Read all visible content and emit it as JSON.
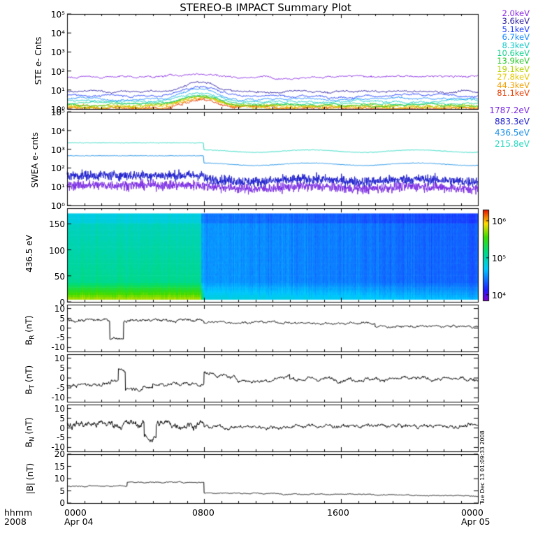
{
  "title": "STEREO-B IMPACT Summary Plot",
  "timestamp_stamp": "Tue Dec 13 01:09:33 2008",
  "x_axis": {
    "left_label_top": "hhmm",
    "left_label_bottom": "2008",
    "ticks": [
      {
        "label": "0000",
        "sub": "Apr 04",
        "hour": 0
      },
      {
        "label": "0800",
        "sub": "",
        "hour": 8
      },
      {
        "label": "1600",
        "sub": "",
        "hour": 16
      },
      {
        "label": "0000",
        "sub": "Apr 05",
        "hour": 24
      }
    ],
    "range_hours": [
      0,
      24
    ]
  },
  "chart_data": [
    {
      "type": "line",
      "panel": "ste",
      "ylabel": "STE e- Cnts",
      "yscale": "log",
      "ylim": [
        1,
        100000
      ],
      "ytick_labels": [
        "10⁰",
        "10¹",
        "10²",
        "10³",
        "10⁴",
        "10⁵"
      ],
      "series": [
        {
          "name": "2.0keV",
          "color": "#8a2be2",
          "level": 50
        },
        {
          "name": "3.6keV",
          "color": "#2a1ba0",
          "level": 8
        },
        {
          "name": "5.1keV",
          "color": "#1e3cff",
          "level": 5
        },
        {
          "name": "6.7keV",
          "color": "#1a8cff",
          "level": 3.5
        },
        {
          "name": "8.3keV",
          "color": "#14c8c8",
          "level": 2.6
        },
        {
          "name": "10.6keV",
          "color": "#14d28c",
          "level": 2
        },
        {
          "name": "13.9keV",
          "color": "#28c828",
          "level": 1.7
        },
        {
          "name": "19.1keV",
          "color": "#b4d200",
          "level": 1.5
        },
        {
          "name": "27.8keV",
          "color": "#e6c800",
          "level": 1.35
        },
        {
          "name": "44.3keV",
          "color": "#f0a000",
          "level": 1.2
        },
        {
          "name": "81.1keV",
          "color": "#e63c00",
          "level": 1.1
        }
      ]
    },
    {
      "type": "line",
      "panel": "swea",
      "ylabel": "SWEA e- cnts",
      "yscale": "log",
      "ylim": [
        1,
        100000
      ],
      "ytick_labels": [
        "10⁰",
        "10¹",
        "10²",
        "10³",
        "10⁴",
        "10⁵"
      ],
      "series": [
        {
          "name": "1787.2eV",
          "color": "#7b2be2",
          "level_before": 12,
          "level_after": 9
        },
        {
          "name": "883.3eV",
          "color": "#1e1ecc",
          "level_before": 40,
          "level_after": 22
        },
        {
          "name": "436.5eV",
          "color": "#1e90e6",
          "level_before": 450,
          "level_after": 160
        },
        {
          "name": "215.8eV",
          "color": "#2ad8c0",
          "level_before": 2200,
          "level_after": 800
        }
      ]
    },
    {
      "type": "heatmap",
      "panel": "pad",
      "ylabel": "436.5 eV",
      "ylim": [
        0,
        180
      ],
      "ytick_labels": [
        "0",
        "50",
        "100",
        "150"
      ],
      "ytick_values": [
        0,
        50,
        100,
        150
      ],
      "colorbar": {
        "scale": "log",
        "range": [
          7000,
          2000000
        ],
        "tick_labels": [
          "10⁴",
          "10⁵",
          "10⁶"
        ],
        "tick_values": [
          10000,
          100000,
          1000000
        ]
      }
    },
    {
      "type": "line",
      "panel": "br",
      "ylabel_main": "B",
      "ylabel_sub": "R",
      "ylabel_unit": "(nT)",
      "ylim": [
        -12,
        12
      ],
      "ytick_labels": [
        "10",
        "5",
        "0",
        "-5",
        "-10"
      ],
      "ytick_values": [
        10,
        5,
        0,
        -5,
        -10
      ]
    },
    {
      "type": "line",
      "panel": "bt",
      "ylabel_main": "B",
      "ylabel_sub": "T",
      "ylabel_unit": "(nT)",
      "ylim": [
        -12,
        12
      ],
      "ytick_labels": [
        "10",
        "5",
        "0",
        "-5",
        "-10"
      ],
      "ytick_values": [
        10,
        5,
        0,
        -5,
        -10
      ]
    },
    {
      "type": "line",
      "panel": "bn",
      "ylabel_main": "B",
      "ylabel_sub": "N",
      "ylabel_unit": "(nT)",
      "ylim": [
        -12,
        12
      ],
      "ytick_labels": [
        "10",
        "5",
        "0",
        "-5",
        "-10"
      ],
      "ytick_values": [
        10,
        5,
        0,
        -5,
        -10
      ]
    },
    {
      "type": "line",
      "panel": "bmag",
      "ylabel_main": "|B| (nT)",
      "ylim": [
        0,
        20
      ],
      "ytick_labels": [
        "20",
        "15",
        "10",
        "5",
        "0"
      ],
      "ytick_values": [
        20,
        15,
        10,
        5,
        0
      ]
    }
  ]
}
